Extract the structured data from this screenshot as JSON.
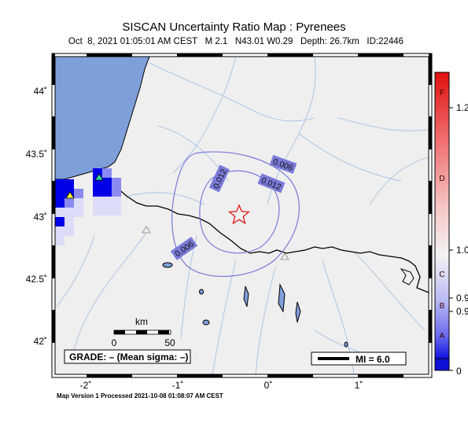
{
  "map": {
    "title": "SISCAN Uncertainty Ratio Map : Pyrenees",
    "subtitle": "Oct  8, 2021 01:05:01 AM CEST   M 2.1   N43.01 W0.29   Depth: 26.7km   ID:22446",
    "footer": "Map Version 1 Processed 2021-10-08 01:08:07 AM CEST",
    "lat_ticks": [
      "44˚",
      "43.5˚",
      "43˚",
      "42.5˚",
      "42˚"
    ],
    "lon_ticks": [
      "-2˚",
      "-1˚",
      "0˚",
      "1˚"
    ],
    "contour_labels": [
      "0.006",
      "0.012",
      "0.012",
      "0.006"
    ],
    "scale_bar": {
      "unit": "km",
      "min_label": "0",
      "max_label": "50"
    },
    "grade_box": "GRADE: – (Mean sigma: –)",
    "mi_legend": "MI = 6.0"
  },
  "colorbar": {
    "right_ticks": [
      "1.2",
      "1.0",
      "0.9",
      "0.9",
      "0"
    ],
    "grade_letters": [
      "F",
      "D",
      "C",
      "B",
      "A"
    ]
  },
  "colors": {
    "land": "#efefef",
    "ocean": "#7f9fdb",
    "contour": "#7a7ad9",
    "epicenter": "#e01818",
    "cell_dark": "#0000e6",
    "cell_mid": "#8a8af0",
    "cell_light": "#dcdcf8"
  }
}
